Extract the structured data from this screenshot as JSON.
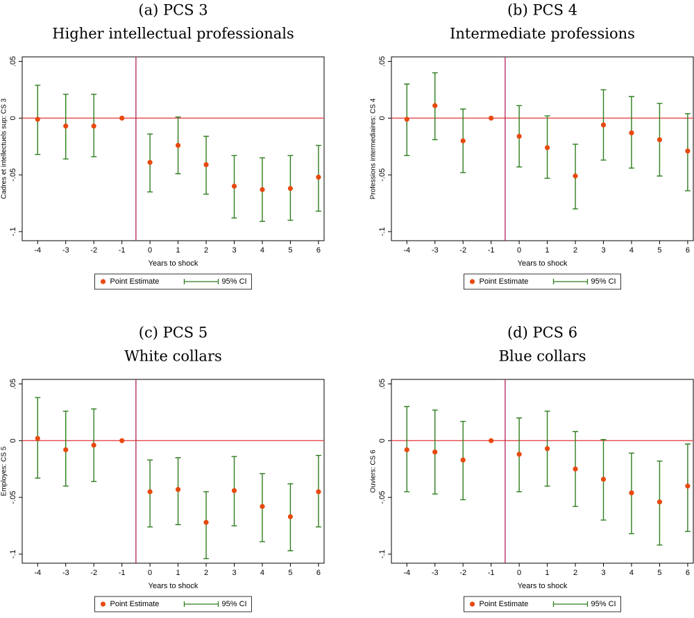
{
  "chart_data": [
    {
      "type": "errorbar",
      "title": "(a) PCS 3",
      "subtitle": "Higher intellectual professionals",
      "ylabel": "Cadres et intellectuels sup: CS 3",
      "xlabel": "Years to shock",
      "x": [
        -4,
        -3,
        -2,
        -1,
        0,
        1,
        2,
        3,
        4,
        5,
        6
      ],
      "series": [
        {
          "name": "Point Estimate",
          "color": "#e8490f",
          "values": [
            -0.001,
            -0.007,
            -0.007,
            0,
            -0.039,
            -0.024,
            -0.041,
            -0.06,
            -0.063,
            -0.062,
            -0.052
          ]
        },
        {
          "name": "95% CI",
          "color": "#2e7d1e",
          "upper": [
            0.029,
            0.021,
            0.021,
            null,
            -0.014,
            0.001,
            -0.016,
            -0.033,
            -0.035,
            -0.033,
            -0.024
          ],
          "lower": [
            -0.032,
            -0.036,
            -0.034,
            null,
            -0.065,
            -0.049,
            -0.067,
            -0.088,
            -0.091,
            -0.09,
            -0.082
          ]
        }
      ],
      "xlim": [
        -4.55,
        6.2
      ],
      "ylim": [
        -0.108,
        0.054
      ],
      "xticks": [
        -4,
        -3,
        -2,
        -1,
        0,
        1,
        2,
        3,
        4,
        5,
        6
      ],
      "yticks": [
        {
          "value": -0.1,
          "label": "-.1"
        },
        {
          "value": -0.05,
          "label": "-.05"
        },
        0,
        {
          "value": 0.05,
          "label": ".05"
        }
      ],
      "hline": 0,
      "hline_color": "#e8474a",
      "vline": -0.5,
      "vline_color": "#b0205a"
    },
    {
      "type": "errorbar",
      "title": "(b) PCS 4",
      "subtitle": "Intermediate professions",
      "ylabel": "Professions intermediaires: CS 4",
      "xlabel": "Years to shock",
      "x": [
        -4,
        -3,
        -2,
        -1,
        0,
        1,
        2,
        3,
        4,
        5,
        6
      ],
      "series": [
        {
          "name": "Point Estimate",
          "color": "#e8490f",
          "values": [
            -0.001,
            0.011,
            -0.02,
            0,
            -0.016,
            -0.026,
            -0.051,
            -0.006,
            -0.013,
            -0.019,
            -0.029
          ]
        },
        {
          "name": "95% CI",
          "color": "#2e7d1e",
          "upper": [
            0.03,
            0.04,
            0.008,
            null,
            0.011,
            0.002,
            -0.023,
            0.025,
            0.019,
            0.013,
            0.004
          ],
          "lower": [
            -0.033,
            -0.019,
            -0.048,
            null,
            -0.043,
            -0.053,
            -0.08,
            -0.037,
            -0.044,
            -0.051,
            -0.064
          ]
        }
      ],
      "xlim": [
        -4.55,
        6.2
      ],
      "ylim": [
        -0.108,
        0.054
      ],
      "xticks": [
        -4,
        -3,
        -2,
        -1,
        0,
        1,
        2,
        3,
        4,
        5,
        6
      ],
      "yticks": [
        {
          "value": -0.1,
          "label": "-.1"
        },
        {
          "value": -0.05,
          "label": "-.05"
        },
        0,
        {
          "value": 0.05,
          "label": ".05"
        }
      ],
      "hline": 0,
      "hline_color": "#e8474a",
      "vline": -0.5,
      "vline_color": "#b0205a"
    },
    {
      "type": "errorbar",
      "title": "(c) PCS 5",
      "subtitle": "White collars",
      "ylabel": "Employes: CS 5",
      "xlabel": "Years to shock",
      "x": [
        -4,
        -3,
        -2,
        -1,
        0,
        1,
        2,
        3,
        4,
        5,
        6
      ],
      "series": [
        {
          "name": "Point Estimate",
          "color": "#e8490f",
          "values": [
            0.002,
            -0.008,
            -0.004,
            0,
            -0.045,
            -0.043,
            -0.072,
            -0.044,
            -0.058,
            -0.067,
            -0.045
          ]
        },
        {
          "name": "95% CI",
          "color": "#2e7d1e",
          "upper": [
            0.038,
            0.026,
            0.028,
            null,
            -0.017,
            -0.015,
            -0.045,
            -0.014,
            -0.029,
            -0.038,
            -0.013
          ],
          "lower": [
            -0.033,
            -0.04,
            -0.036,
            null,
            -0.076,
            -0.074,
            -0.104,
            -0.075,
            -0.089,
            -0.097,
            -0.076
          ]
        }
      ],
      "xlim": [
        -4.55,
        6.2
      ],
      "ylim": [
        -0.108,
        0.054
      ],
      "xticks": [
        -4,
        -3,
        -2,
        -1,
        0,
        1,
        2,
        3,
        4,
        5,
        6
      ],
      "yticks": [
        {
          "value": -0.1,
          "label": "-.1"
        },
        {
          "value": -0.05,
          "label": "-.05"
        },
        0,
        {
          "value": 0.05,
          "label": ".05"
        }
      ],
      "hline": 0,
      "hline_color": "#e8474a",
      "vline": -0.5,
      "vline_color": "#b0205a"
    },
    {
      "type": "errorbar",
      "title": "(d) PCS 6",
      "subtitle": "Blue collars",
      "ylabel": "Ouviers: CS 6",
      "xlabel": "Years to shock",
      "x": [
        -4,
        -3,
        -2,
        -1,
        0,
        1,
        2,
        3,
        4,
        5,
        6
      ],
      "series": [
        {
          "name": "Point Estimate",
          "color": "#e8490f",
          "values": [
            -0.008,
            -0.01,
            -0.017,
            0,
            -0.012,
            -0.007,
            -0.025,
            -0.034,
            -0.046,
            -0.054,
            -0.04
          ]
        },
        {
          "name": "95% CI",
          "color": "#2e7d1e",
          "upper": [
            0.03,
            0.027,
            0.017,
            null,
            0.02,
            0.026,
            0.008,
            0.001,
            -0.011,
            -0.018,
            -0.003
          ],
          "lower": [
            -0.045,
            -0.047,
            -0.052,
            null,
            -0.045,
            -0.04,
            -0.058,
            -0.07,
            -0.082,
            -0.092,
            -0.08
          ]
        }
      ],
      "xlim": [
        -4.55,
        6.2
      ],
      "ylim": [
        -0.108,
        0.054
      ],
      "xticks": [
        -4,
        -3,
        -2,
        -1,
        0,
        1,
        2,
        3,
        4,
        5,
        6
      ],
      "yticks": [
        {
          "value": -0.1,
          "label": "-.1"
        },
        {
          "value": -0.05,
          "label": "-.05"
        },
        0,
        {
          "value": 0.05,
          "label": ".05"
        }
      ],
      "hline": 0,
      "hline_color": "#e8474a",
      "vline": -0.5,
      "vline_color": "#b0205a"
    }
  ]
}
